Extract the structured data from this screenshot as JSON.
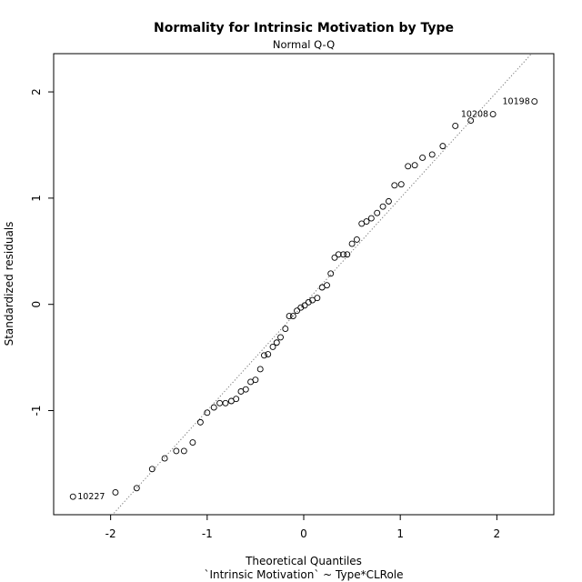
{
  "chart_data": {
    "type": "scatter",
    "title": "Normality for Intrinsic Motivation by Type",
    "subtitle": "Normal Q-Q",
    "xlabel": "Theoretical Quantiles",
    "xlabel2": "`Intrinsic Motivation` ~ Type*CLRole",
    "ylabel": "Standardized residuals",
    "xlim": [
      -2.59,
      2.59
    ],
    "ylim": [
      -1.98,
      2.36
    ],
    "xticks": [
      -2,
      -1,
      0,
      1,
      2
    ],
    "yticks": [
      -1,
      0,
      1,
      2
    ],
    "reference_line": {
      "slope": 1.0,
      "intercept": 0.0
    },
    "x": [
      -2.39,
      -1.95,
      -1.73,
      -1.57,
      -1.44,
      -1.32,
      -1.24,
      -1.15,
      -1.07,
      -1.0,
      -0.93,
      -0.87,
      -0.81,
      -0.75,
      -0.7,
      -0.65,
      -0.6,
      -0.55,
      -0.5,
      -0.45,
      -0.41,
      -0.37,
      -0.32,
      -0.28,
      -0.24,
      -0.19,
      -0.15,
      -0.11,
      -0.07,
      -0.03,
      0.01,
      0.05,
      0.09,
      0.14,
      0.19,
      0.24,
      0.28,
      0.32,
      0.36,
      0.41,
      0.45,
      0.5,
      0.55,
      0.6,
      0.65,
      0.7,
      0.76,
      0.82,
      0.88,
      0.94,
      1.01,
      1.08,
      1.15,
      1.23,
      1.33,
      1.44,
      1.57,
      1.73,
      1.96,
      2.39
    ],
    "y": [
      -1.81,
      -1.77,
      -1.73,
      -1.55,
      -1.45,
      -1.38,
      -1.38,
      -1.3,
      -1.11,
      -1.02,
      -0.97,
      -0.93,
      -0.93,
      -0.91,
      -0.89,
      -0.82,
      -0.8,
      -0.73,
      -0.71,
      -0.61,
      -0.48,
      -0.47,
      -0.4,
      -0.36,
      -0.31,
      -0.23,
      -0.11,
      -0.11,
      -0.06,
      -0.03,
      -0.01,
      0.02,
      0.04,
      0.06,
      0.16,
      0.18,
      0.29,
      0.44,
      0.47,
      0.47,
      0.47,
      0.57,
      0.61,
      0.76,
      0.78,
      0.81,
      0.86,
      0.92,
      0.97,
      1.12,
      1.13,
      1.3,
      1.31,
      1.38,
      1.41,
      1.49,
      1.68,
      1.73,
      1.79,
      1.91
    ],
    "labeled_points": [
      {
        "index": 0,
        "label": "10227",
        "side": "right"
      },
      {
        "index": 58,
        "label": "10208",
        "side": "left"
      },
      {
        "index": 59,
        "label": "10198",
        "side": "left"
      }
    ]
  }
}
